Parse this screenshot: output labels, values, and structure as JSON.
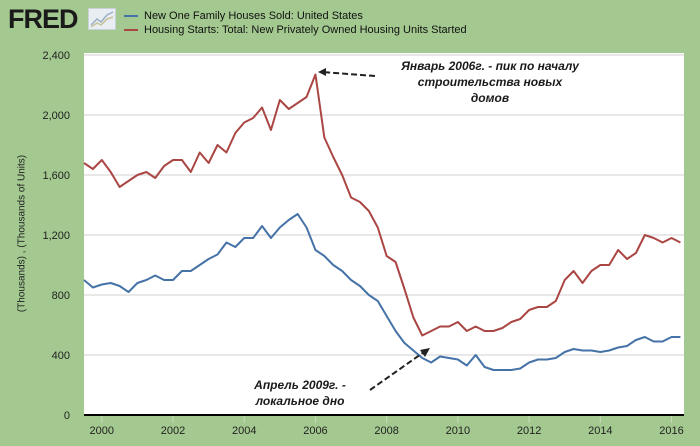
{
  "logo": {
    "text": "FRED",
    "icon": "line-chart-icon"
  },
  "chart_data": {
    "type": "line",
    "title": "",
    "xlabel": "",
    "ylabel": "(Thousands) , (Thousands of Units)",
    "ylim": [
      0,
      2400
    ],
    "xlim": [
      1999.5,
      2016.35
    ],
    "yticks": [
      0,
      400,
      800,
      1200,
      1600,
      2000,
      2400
    ],
    "ytick_labels": [
      "0",
      "400",
      "800",
      "1,200",
      "1,600",
      "2,000",
      "2,400"
    ],
    "xticks": [
      2000,
      2002,
      2004,
      2006,
      2008,
      2010,
      2012,
      2014,
      2016
    ],
    "xtick_labels": [
      "2000",
      "2002",
      "2004",
      "2006",
      "2008",
      "2010",
      "2012",
      "2014",
      "2016"
    ],
    "grid": true,
    "legend_position": "top",
    "x": [
      1999.5,
      1999.75,
      2000,
      2000.25,
      2000.5,
      2000.75,
      2001,
      2001.25,
      2001.5,
      2001.75,
      2002,
      2002.25,
      2002.5,
      2002.75,
      2003,
      2003.25,
      2003.5,
      2003.75,
      2004,
      2004.25,
      2004.5,
      2004.75,
      2005,
      2005.25,
      2005.5,
      2005.75,
      2006,
      2006.25,
      2006.5,
      2006.75,
      2007,
      2007.25,
      2007.5,
      2007.75,
      2008,
      2008.25,
      2008.5,
      2008.75,
      2009,
      2009.25,
      2009.5,
      2009.75,
      2010,
      2010.25,
      2010.5,
      2010.75,
      2011,
      2011.25,
      2011.5,
      2011.75,
      2012,
      2012.25,
      2012.5,
      2012.75,
      2013,
      2013.25,
      2013.5,
      2013.75,
      2014,
      2014.25,
      2014.5,
      2014.75,
      2015,
      2015.25,
      2015.5,
      2015.75,
      2016,
      2016.25
    ],
    "series": [
      {
        "name": "New One Family Houses Sold: United States",
        "color": "#4572a7",
        "values": [
          900,
          850,
          870,
          880,
          860,
          820,
          880,
          900,
          930,
          900,
          900,
          960,
          960,
          1000,
          1040,
          1070,
          1150,
          1120,
          1180,
          1180,
          1260,
          1180,
          1250,
          1300,
          1340,
          1250,
          1100,
          1060,
          1000,
          960,
          900,
          860,
          800,
          760,
          660,
          560,
          480,
          430,
          380,
          350,
          390,
          380,
          370,
          330,
          400,
          320,
          300,
          300,
          300,
          310,
          350,
          370,
          370,
          380,
          420,
          440,
          430,
          430,
          420,
          430,
          450,
          460,
          500,
          520,
          490,
          490,
          520,
          520
        ]
      },
      {
        "name": "Housing Starts: Total: New Privately Owned Housing Units Started",
        "color": "#aa4643",
        "values": [
          1680,
          1640,
          1700,
          1620,
          1520,
          1560,
          1600,
          1620,
          1580,
          1660,
          1700,
          1700,
          1620,
          1750,
          1680,
          1800,
          1750,
          1880,
          1950,
          1980,
          2050,
          1900,
          2100,
          2040,
          2080,
          2120,
          2270,
          1850,
          1720,
          1600,
          1450,
          1420,
          1360,
          1250,
          1060,
          1020,
          840,
          650,
          530,
          560,
          590,
          590,
          620,
          560,
          590,
          560,
          560,
          580,
          620,
          640,
          700,
          720,
          720,
          760,
          900,
          960,
          880,
          960,
          1000,
          1000,
          1100,
          1040,
          1080,
          1200,
          1180,
          1150,
          1180,
          1150
        ]
      }
    ],
    "annotations": [
      {
        "text": "Январь 2006г. - пик по началу строительства новых домов",
        "x": 2006.0,
        "y": 2270
      },
      {
        "text": "Апрель 2009г. - локальное дно",
        "x": 2009.25,
        "y": 480
      }
    ]
  },
  "annotations": {
    "peak_line1": "Январь 2006г. - пик по началу",
    "peak_line2": "строительства новых",
    "peak_line3": "домов",
    "trough_line1": "Апрель 2009г. -",
    "trough_line2": "локальное дно"
  }
}
